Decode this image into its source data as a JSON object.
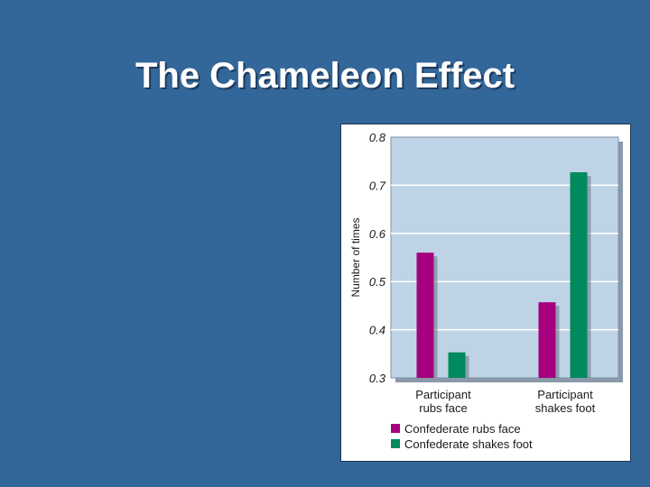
{
  "slide": {
    "title": "The Chameleon Effect"
  },
  "colors": {
    "background": "#336699",
    "plot_area": "#bfd3e6",
    "rubs_face": "#a6007e",
    "shakes_foot": "#008a5e"
  },
  "chart_data": {
    "type": "bar",
    "categories": [
      "Participant rubs face",
      "Participant shakes foot"
    ],
    "category_label_lines": [
      [
        "Participant",
        "rubs face"
      ],
      [
        "Participant",
        "shakes foot"
      ]
    ],
    "series": [
      {
        "name": "Confederate rubs face",
        "values": [
          0.56,
          0.457
        ],
        "color": "#a6007e"
      },
      {
        "name": "Confederate shakes foot",
        "values": [
          0.353,
          0.727
        ],
        "color": "#008a5e"
      }
    ],
    "ylabel": "Number of times",
    "xlabel": "",
    "ylim": [
      0.3,
      0.8
    ],
    "yticks": [
      "0.3",
      "0.4",
      "0.5",
      "0.6",
      "0.7",
      "0.8"
    ],
    "grid": true,
    "legend_position": "bottom"
  }
}
